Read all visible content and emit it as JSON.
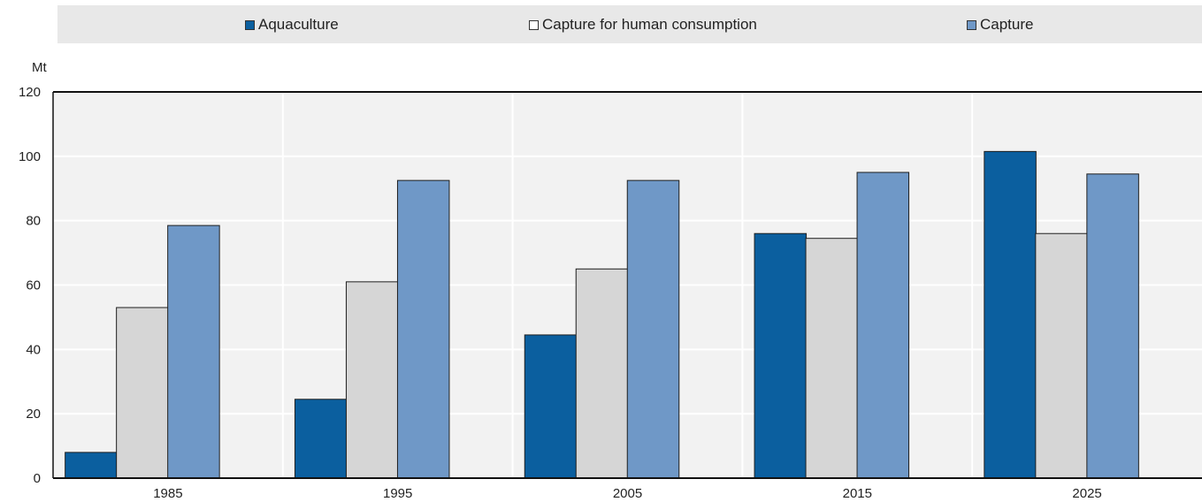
{
  "chart_data": {
    "type": "bar",
    "categories": [
      "1985",
      "1995",
      "2005",
      "2015",
      "2025"
    ],
    "series": [
      {
        "name": "Aquaculture",
        "color": "#0b5f9f",
        "values": [
          8,
          24.5,
          44.5,
          76,
          101.5
        ]
      },
      {
        "name": "Capture for human consumption",
        "color": "#d6d6d6",
        "values": [
          53,
          61,
          65,
          74.5,
          76
        ]
      },
      {
        "name": "Capture",
        "color": "#6f98c7",
        "values": [
          78.5,
          92.5,
          92.5,
          95,
          94.5
        ]
      }
    ],
    "ylabel": "Mt",
    "ylim": [
      0,
      120
    ],
    "yticks": [
      "0",
      "20",
      "40",
      "60",
      "80",
      "100",
      "120"
    ],
    "legend_position": "top",
    "grid": true
  }
}
